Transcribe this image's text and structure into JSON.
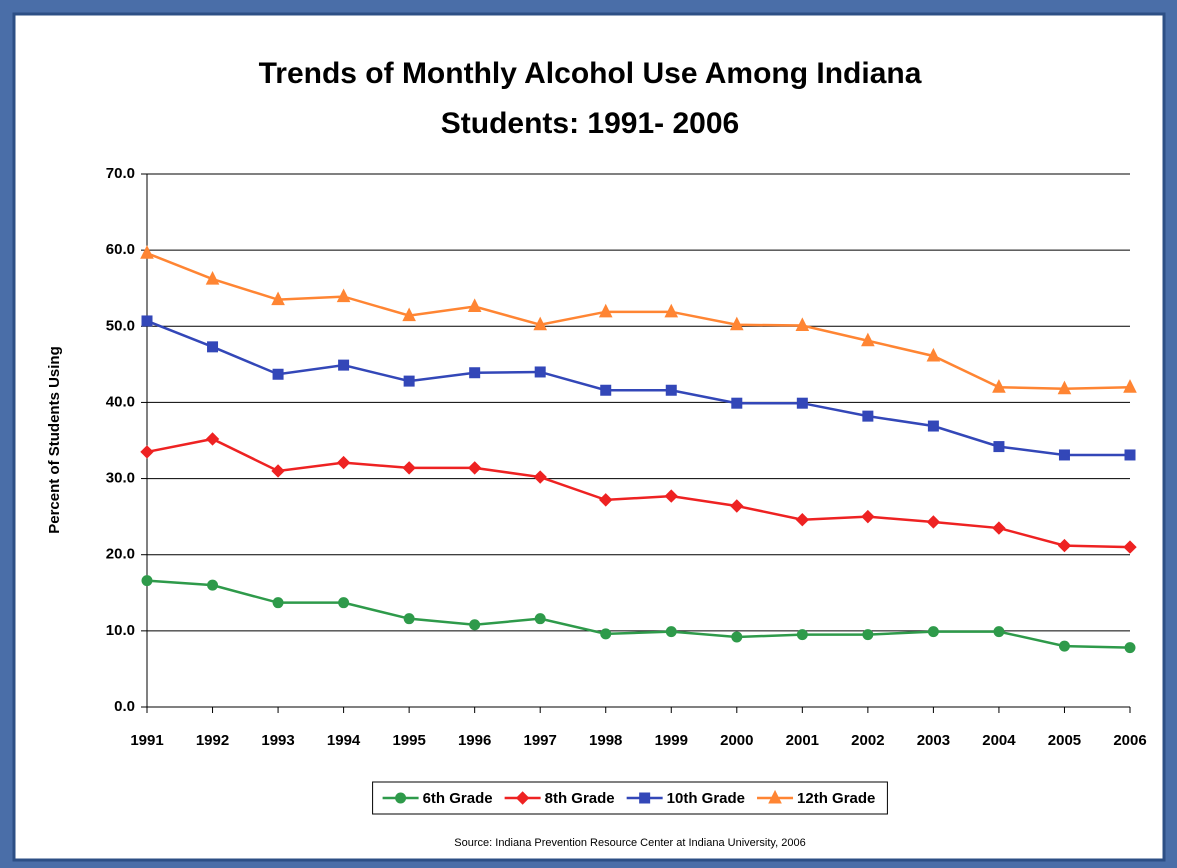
{
  "chart_data": {
    "type": "line",
    "title": [
      "Trends of Monthly Alcohol Use Among Indiana",
      "Students: 1991- 2006"
    ],
    "y_label": "Percent of Students Using",
    "source": "Source: Indiana Prevention Resource Center at Indiana University, 2006",
    "categories": [
      "1991",
      "1992",
      "1993",
      "1994",
      "1995",
      "1996",
      "1997",
      "1998",
      "1999",
      "2000",
      "2001",
      "2002",
      "2003",
      "2004",
      "2005",
      "2006"
    ],
    "ylim": [
      0,
      70
    ],
    "yticks": [
      {
        "value": 0,
        "label": "0.0"
      },
      {
        "value": 10,
        "label": "10.0"
      },
      {
        "value": 20,
        "label": "20.0"
      },
      {
        "value": 30,
        "label": "30.0"
      },
      {
        "value": 40,
        "label": "40.0"
      },
      {
        "value": 50,
        "label": "50.0"
      },
      {
        "value": 60,
        "label": "60.0"
      },
      {
        "value": 70,
        "label": "70.0"
      }
    ],
    "grid": true,
    "legend": "bottom",
    "series": [
      {
        "name": "6th Grade",
        "color": "#2e9a4a",
        "marker": "circle",
        "values": [
          16.6,
          16.0,
          13.7,
          13.7,
          11.6,
          10.8,
          11.6,
          9.6,
          9.9,
          9.2,
          9.5,
          9.5,
          9.9,
          9.9,
          8.0,
          7.8
        ]
      },
      {
        "name": "8th Grade",
        "color": "#ee2222",
        "marker": "diamond",
        "values": [
          33.5,
          35.2,
          31.0,
          32.1,
          31.4,
          31.4,
          30.2,
          27.2,
          27.7,
          26.4,
          24.6,
          25.0,
          24.3,
          23.5,
          21.2,
          21.0
        ]
      },
      {
        "name": "10th Grade",
        "color": "#3347b8",
        "marker": "square",
        "values": [
          50.7,
          47.3,
          43.7,
          44.9,
          42.8,
          43.9,
          44.0,
          41.6,
          41.6,
          39.9,
          39.9,
          38.2,
          36.9,
          34.2,
          33.1,
          33.1
        ]
      },
      {
        "name": "12th Grade",
        "color": "#ff8533",
        "marker": "triangle",
        "values": [
          59.6,
          56.2,
          53.5,
          53.9,
          51.4,
          52.6,
          50.2,
          51.9,
          51.9,
          50.2,
          50.1,
          48.1,
          46.1,
          42.0,
          41.8,
          42.0
        ]
      }
    ]
  }
}
